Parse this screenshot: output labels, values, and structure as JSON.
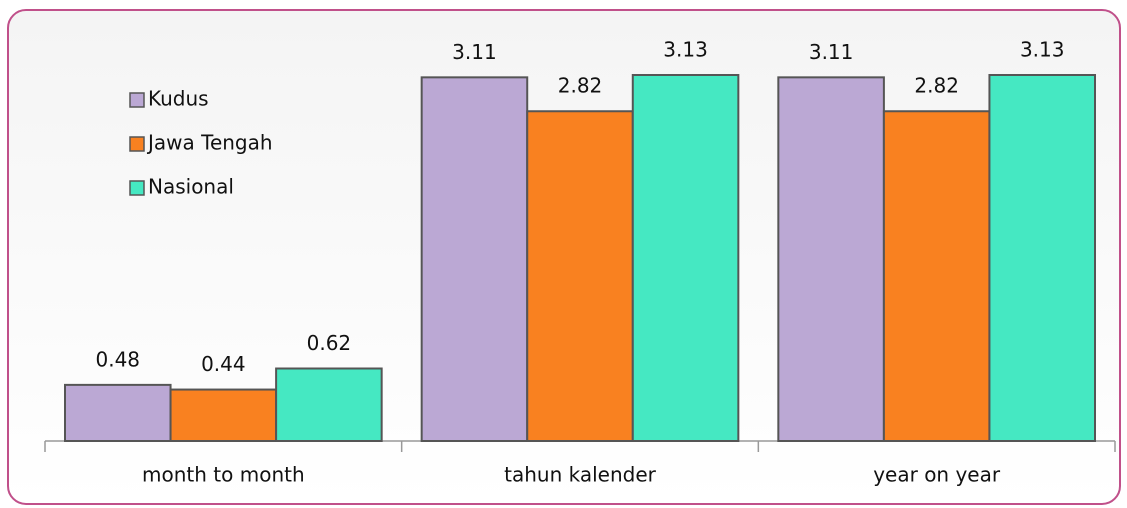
{
  "chart_data": {
    "type": "bar",
    "categories": [
      "month to month",
      "tahun kalender",
      "year on year"
    ],
    "series": [
      {
        "name": "Kudus",
        "color": "#bba8d4",
        "values": [
          0.48,
          3.11,
          3.11
        ]
      },
      {
        "name": "Jawa Tengah",
        "color": "#f98120",
        "values": [
          0.44,
          2.82,
          2.82
        ]
      },
      {
        "name": "Nasional",
        "color": "#45e8c2",
        "values": [
          0.62,
          3.13,
          3.13
        ]
      }
    ],
    "legend": "top-left"
  }
}
